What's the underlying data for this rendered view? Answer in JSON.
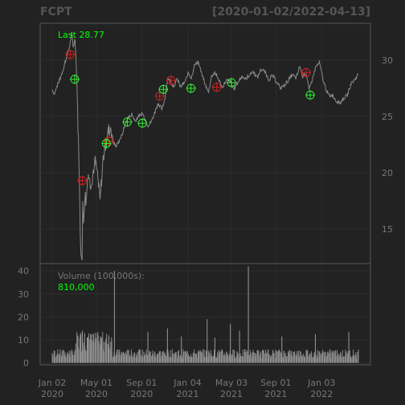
{
  "chart_data": [
    {
      "type": "line",
      "title": "FCPT",
      "date_range": "[2020-01-02/2022-04-13]",
      "last_label": "Last 28.77",
      "last_value": 28.77,
      "x_ticks": [
        {
          "date": "2020-01-02",
          "line1": "Jan 02",
          "line2": "2020"
        },
        {
          "date": "2020-05-01",
          "line1": "May 01",
          "line2": "2020"
        },
        {
          "date": "2020-09-01",
          "line1": "Sep 01",
          "line2": "2020"
        },
        {
          "date": "2021-01-04",
          "line1": "Jan 04",
          "line2": "2021"
        },
        {
          "date": "2021-05-03",
          "line1": "May 03",
          "line2": "2021"
        },
        {
          "date": "2021-09-01",
          "line1": "Sep 01",
          "line2": "2021"
        },
        {
          "date": "2022-01-03",
          "line1": "Jan 03",
          "line2": "2022"
        }
      ],
      "x_range": [
        "2020-01-02",
        "2022-04-13"
      ],
      "y_ticks": [
        15,
        20,
        25,
        30
      ],
      "ylim": [
        12.0,
        33.2
      ],
      "grid": true,
      "price_series": [
        [
          "2020-01-02",
          27.4
        ],
        [
          "2020-01-08",
          27.0
        ],
        [
          "2020-01-14",
          27.6
        ],
        [
          "2020-01-21",
          28.2
        ],
        [
          "2020-01-28",
          28.8
        ],
        [
          "2020-02-04",
          29.6
        ],
        [
          "2020-02-11",
          30.4
        ],
        [
          "2020-02-18",
          31.2
        ],
        [
          "2020-02-24",
          32.4
        ],
        [
          "2020-02-28",
          31.2
        ],
        [
          "2020-03-04",
          31.9
        ],
        [
          "2020-03-09",
          28.4
        ],
        [
          "2020-03-12",
          24.0
        ],
        [
          "2020-03-16",
          19.3
        ],
        [
          "2020-03-18",
          14.5
        ],
        [
          "2020-03-20",
          13.2
        ],
        [
          "2020-03-23",
          12.8
        ],
        [
          "2020-03-25",
          17.0
        ],
        [
          "2020-03-27",
          15.8
        ],
        [
          "2020-03-31",
          18.2
        ],
        [
          "2020-04-03",
          17.2
        ],
        [
          "2020-04-08",
          20.1
        ],
        [
          "2020-04-14",
          19.0
        ],
        [
          "2020-04-20",
          19.6
        ],
        [
          "2020-04-27",
          21.1
        ],
        [
          "2020-05-04",
          19.8
        ],
        [
          "2020-05-11",
          17.4
        ],
        [
          "2020-05-18",
          20.9
        ],
        [
          "2020-05-26",
          22.6
        ],
        [
          "2020-06-02",
          23.6
        ],
        [
          "2020-06-09",
          24.1
        ],
        [
          "2020-06-16",
          22.7
        ],
        [
          "2020-06-23",
          22.3
        ],
        [
          "2020-07-01",
          22.8
        ],
        [
          "2020-07-09",
          23.3
        ],
        [
          "2020-07-17",
          24.2
        ],
        [
          "2020-07-27",
          24.9
        ],
        [
          "2020-08-05",
          25.2
        ],
        [
          "2020-08-14",
          24.6
        ],
        [
          "2020-08-24",
          25.0
        ],
        [
          "2020-09-02",
          25.3
        ],
        [
          "2020-09-10",
          24.8
        ],
        [
          "2020-09-18",
          24.2
        ],
        [
          "2020-09-28",
          24.6
        ],
        [
          "2020-10-07",
          25.4
        ],
        [
          "2020-10-16",
          26.2
        ],
        [
          "2020-10-26",
          25.6
        ],
        [
          "2020-11-04",
          26.7
        ],
        [
          "2020-11-10",
          28.4
        ],
        [
          "2020-11-18",
          28.1
        ],
        [
          "2020-11-27",
          27.7
        ],
        [
          "2020-12-07",
          28.3
        ],
        [
          "2020-12-16",
          27.6
        ],
        [
          "2020-12-28",
          28.1
        ],
        [
          "2021-01-06",
          28.9
        ],
        [
          "2021-01-14",
          28.4
        ],
        [
          "2021-01-22",
          29.5
        ],
        [
          "2021-02-01",
          29.9
        ],
        [
          "2021-02-10",
          28.9
        ],
        [
          "2021-02-19",
          28.0
        ],
        [
          "2021-03-01",
          27.1
        ],
        [
          "2021-03-10",
          28.6
        ],
        [
          "2021-03-19",
          28.9
        ],
        [
          "2021-03-29",
          28.3
        ],
        [
          "2021-04-08",
          27.6
        ],
        [
          "2021-04-19",
          28.2
        ],
        [
          "2021-04-29",
          28.1
        ],
        [
          "2021-05-10",
          27.4
        ],
        [
          "2021-05-20",
          28.0
        ],
        [
          "2021-06-01",
          28.6
        ],
        [
          "2021-06-10",
          28.3
        ],
        [
          "2021-06-21",
          28.7
        ],
        [
          "2021-07-01",
          29.0
        ],
        [
          "2021-07-12",
          28.4
        ],
        [
          "2021-07-22",
          29.2
        ],
        [
          "2021-08-02",
          29.0
        ],
        [
          "2021-08-12",
          28.3
        ],
        [
          "2021-08-23",
          28.6
        ],
        [
          "2021-09-02",
          28.1
        ],
        [
          "2021-09-14",
          27.5
        ],
        [
          "2021-09-24",
          27.8
        ],
        [
          "2021-10-05",
          28.2
        ],
        [
          "2021-10-15",
          28.7
        ],
        [
          "2021-10-26",
          28.4
        ],
        [
          "2021-11-05",
          29.5
        ],
        [
          "2021-11-12",
          28.6
        ],
        [
          "2021-11-22",
          28.9
        ],
        [
          "2021-11-30",
          27.3
        ],
        [
          "2021-12-08",
          28.2
        ],
        [
          "2021-12-17",
          29.3
        ],
        [
          "2021-12-28",
          29.8
        ],
        [
          "2022-01-06",
          28.4
        ],
        [
          "2022-01-14",
          27.5
        ],
        [
          "2022-01-24",
          26.8
        ],
        [
          "2022-02-02",
          26.9
        ],
        [
          "2022-02-11",
          26.4
        ],
        [
          "2022-02-22",
          26.2
        ],
        [
          "2022-03-03",
          26.6
        ],
        [
          "2022-03-14",
          26.9
        ],
        [
          "2022-03-24",
          27.9
        ],
        [
          "2022-04-04",
          28.3
        ],
        [
          "2022-04-13",
          28.77
        ]
      ],
      "signals_red": [
        [
          "2020-02-20",
          30.5
        ],
        [
          "2020-03-24",
          19.3
        ],
        [
          "2020-06-03",
          22.8
        ],
        [
          "2020-10-20",
          26.8
        ],
        [
          "2020-11-20",
          28.2
        ],
        [
          "2021-03-24",
          27.6
        ],
        [
          "2021-11-22",
          28.9
        ]
      ],
      "signals_green": [
        [
          "2020-03-03",
          28.3
        ],
        [
          "2020-05-28",
          22.6
        ],
        [
          "2020-07-24",
          24.5
        ],
        [
          "2020-09-03",
          24.4
        ],
        [
          "2020-10-30",
          27.4
        ],
        [
          "2021-01-13",
          27.5
        ],
        [
          "2021-05-03",
          28.0
        ],
        [
          "2021-12-03",
          26.9
        ]
      ]
    },
    {
      "type": "bar",
      "label": "Volume (100,000s):",
      "current_value": "810,000",
      "y_ticks": [
        0,
        10,
        20,
        30,
        40
      ],
      "ylim": [
        -0.5,
        42.5
      ],
      "volume_spikes": [
        [
          "2020-03-20",
          13.0
        ],
        [
          "2020-03-24",
          14.0
        ],
        [
          "2020-03-30",
          13.0
        ],
        [
          "2020-04-06",
          11.0
        ],
        [
          "2020-04-17",
          12.5
        ],
        [
          "2020-05-15",
          11.0
        ],
        [
          "2020-06-04",
          12.0
        ],
        [
          "2020-06-19",
          40.0
        ],
        [
          "2020-09-18",
          13.5
        ],
        [
          "2020-11-10",
          15.0
        ],
        [
          "2020-12-18",
          11.5
        ],
        [
          "2021-02-26",
          19.0
        ],
        [
          "2021-03-19",
          11.0
        ],
        [
          "2021-04-30",
          17.0
        ],
        [
          "2021-05-25",
          14.0
        ],
        [
          "2021-06-18",
          42.0
        ],
        [
          "2021-09-17",
          11.5
        ],
        [
          "2021-12-17",
          12.5
        ],
        [
          "2022-03-18",
          13.5
        ]
      ]
    }
  ]
}
